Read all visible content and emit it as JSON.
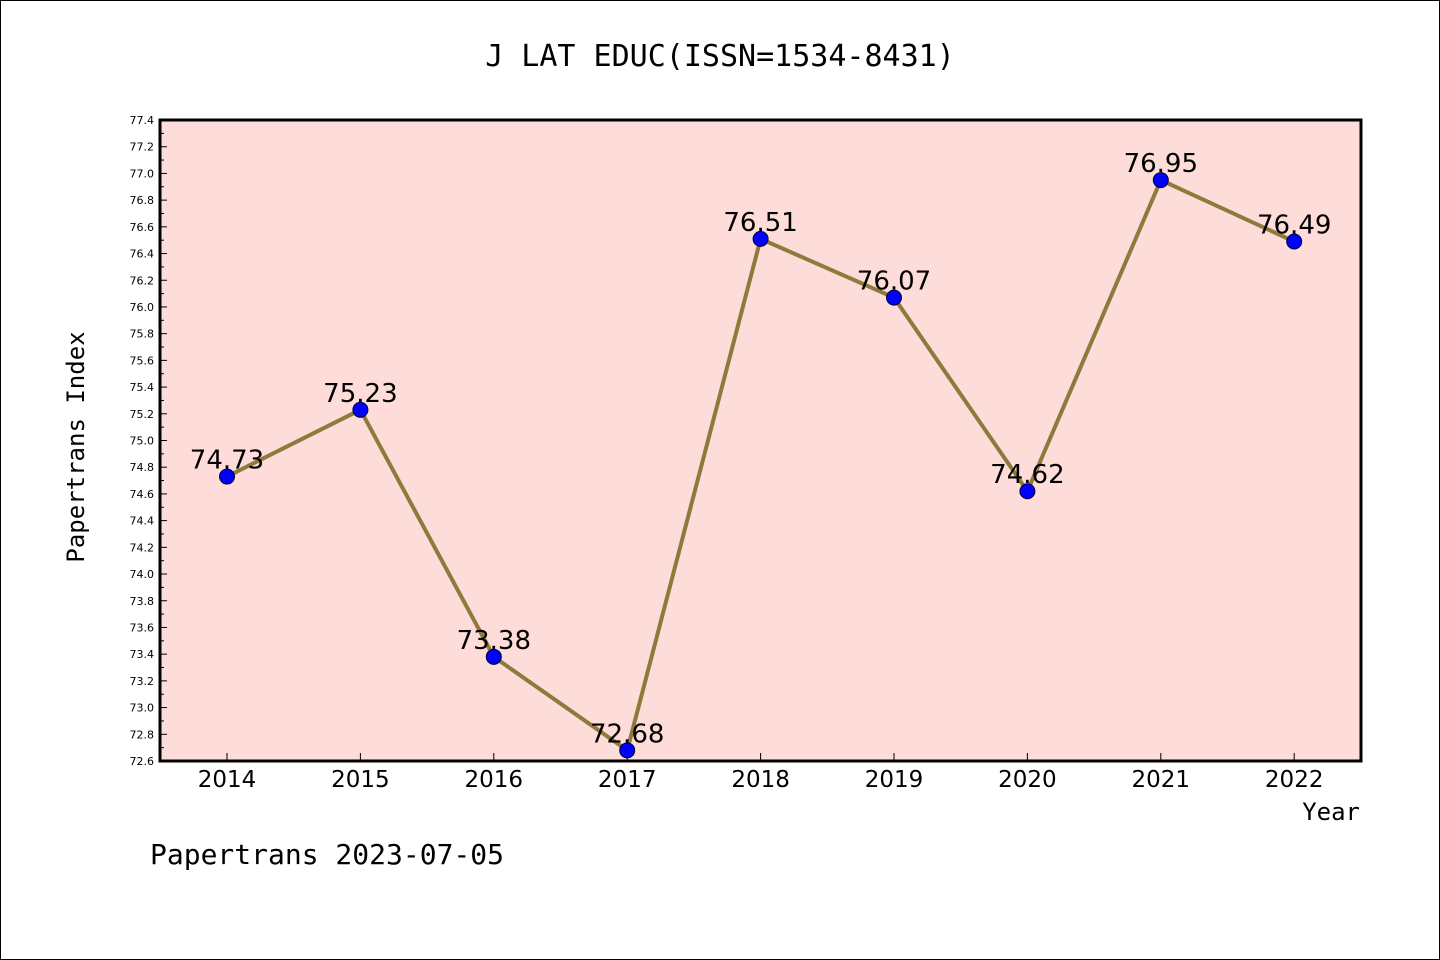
{
  "footer_text": "Papertrans 2023-07-05",
  "colors": {
    "plot_background": "#fddcd9",
    "line": "#8f7a3c",
    "marker": "#0000ff"
  },
  "chart_data": {
    "type": "line",
    "title": "J LAT EDUC(ISSN=1534-8431)",
    "xlabel": "Year",
    "ylabel": "Papertrans Index",
    "categories": [
      "2014",
      "2015",
      "2016",
      "2017",
      "2018",
      "2019",
      "2020",
      "2021",
      "2022"
    ],
    "values": [
      74.73,
      75.23,
      73.38,
      72.68,
      76.51,
      76.07,
      74.62,
      76.95,
      76.49
    ],
    "data_labels": [
      "74.73",
      "75.23",
      "73.38",
      "72.68",
      "76.51",
      "76.07",
      "74.62",
      "76.95",
      "76.49"
    ],
    "ylim": [
      72.6,
      77.4
    ],
    "yticks": [
      "72.6",
      "72.8",
      "73.0",
      "73.2",
      "73.4",
      "73.6",
      "73.8",
      "74.0",
      "74.2",
      "74.4",
      "74.6",
      "74.8",
      "75.0",
      "75.2",
      "75.4",
      "75.6",
      "75.8",
      "76.0",
      "76.2",
      "76.4",
      "76.6",
      "76.8",
      "77.0",
      "77.2",
      "77.4"
    ],
    "grid": false,
    "legend": "none"
  }
}
